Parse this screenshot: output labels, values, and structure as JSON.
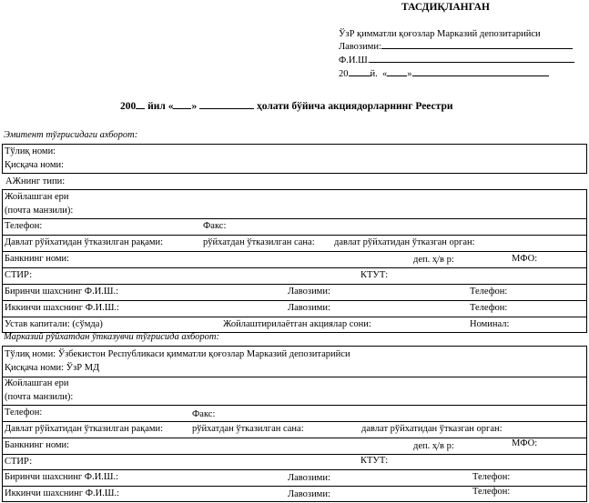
{
  "approval": {
    "heading": "ТАСДИҚЛАНГАН",
    "org": "ЎзР қимматли қоғозлар Марказий депозитарийси",
    "position_label": "Лавозими:",
    "name_label": "Ф.И.Ш.",
    "date_year": "20",
    "date_year_suffix": "й.",
    "date_quote_open": "«",
    "date_quote_close": "»"
  },
  "document_title": {
    "year_prefix": "200",
    "year_suffix": "йил «",
    "quote_close": "»",
    "rest": "ҳолати бўйича акциядорларнинг Реестри"
  },
  "issuer": {
    "section_label": "Эмитент тўғрисидаги ахборот:",
    "full_name": "Тўлиқ номи:",
    "short_name": "Қисқача номи:",
    "jsc_type": "АЖнинг типи:",
    "address_1": "Жойлашган ери",
    "address_2": "(почта манзили):",
    "phone": "Телефон:",
    "fax": "Факс:",
    "reg_number": "Давлат рўйхатидан ўтказилган рақами:",
    "reg_date": "рўйхатдан ўтказилган сана:",
    "reg_body": "давлат рўйхатидан ўтказган орган:",
    "bank": "Банкнинг номи:",
    "account": "деп. ҳ/в р:",
    "mfo": "МФО:",
    "stir": "СТИР:",
    "ktut": "КТУТ:",
    "first_person": "Биринчи шахснинг Ф.И.Ш.:",
    "second_person": "Иккинчи шахснинг Ф.И.Ш.:",
    "position": "Лавозими:",
    "person_phone": "Телефон:",
    "capital": "Устав капитали: (сўмда)",
    "shares_count": "Жойлаштирилаётган акциялар сони:",
    "nominal": "Номинал:"
  },
  "registrar": {
    "section_label": "Марказий рўйхатдан ўтказувчи тўғрисида ахборот:",
    "full_name": "Тўлиқ номи: Ўзбекистон Республикаси қимматли қоғозлар Марказий депозитарийси",
    "short_name": "Қисқача номи: ЎзР МД",
    "address_1": "Жойлашган ери",
    "address_2": "(почта манзили):",
    "phone": "Телефон:",
    "fax": "Факс:",
    "reg_number": "Давлат рўйхатидан ўтказилган рақами:",
    "reg_date": "рўйхатдан ўтказилган сана:",
    "reg_body": "давлат рўйхатидан ўтказган орган:",
    "bank": "Банкнинг номи:",
    "account": "деп. ҳ/в р:",
    "mfo": "МФО:",
    "stir": "СТИР:",
    "ktut": "КТУТ:",
    "first_person": "Биринчи шахснинг Ф.И.Ш.:",
    "second_person": "Иккинчи шахснинг Ф.И.Ш.:",
    "position": "Лавозими:",
    "person_phone": "Телефон:"
  }
}
